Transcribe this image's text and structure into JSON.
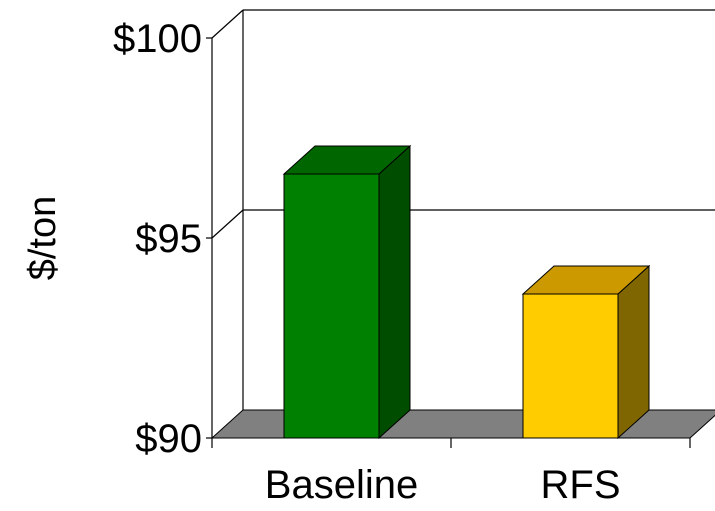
{
  "chart_data": {
    "type": "bar",
    "title": "",
    "xlabel": "",
    "ylabel": "$/ton",
    "categories": [
      "Baseline",
      "RFS"
    ],
    "series": [
      {
        "values": [
          96.6,
          93.6
        ],
        "colors": [
          "#008000",
          "#ffcc00"
        ]
      }
    ],
    "ylim": [
      90,
      100
    ],
    "yticks": [
      90,
      95,
      100
    ],
    "ytick_labels": [
      "$90",
      "$95",
      "$100"
    ],
    "grid": true,
    "legend": "none",
    "style": "3d",
    "colors": {
      "floor": "#808080",
      "gridline": "#000000",
      "baseline_front": "#008000",
      "baseline_top": "#006600",
      "baseline_side": "#004d00",
      "rfs_front": "#ffcc00",
      "rfs_top": "#cc9900",
      "rfs_side": "#806600"
    }
  }
}
